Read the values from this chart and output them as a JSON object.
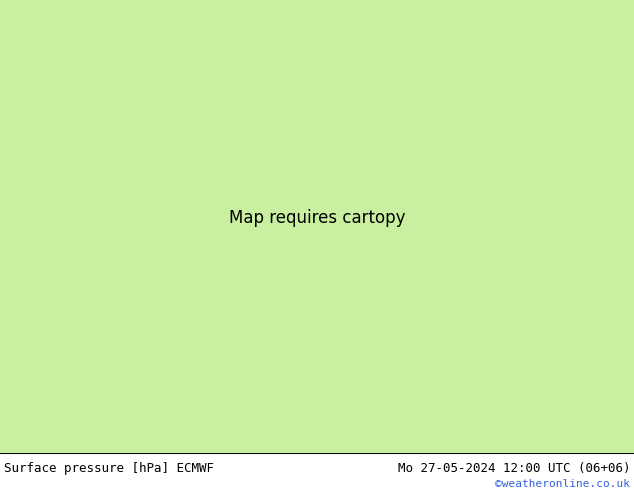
{
  "title_left": "Surface pressure [hPa] ECMWF",
  "title_right": "Mo 27-05-2024 12:00 UTC (06+06)",
  "credit": "©weatheronline.co.uk",
  "land_green": "#c8f0a0",
  "sea_gray": "#c8ccd8",
  "border_dark": "#404040",
  "border_gray": "#808080",
  "red": "#ff0000",
  "blue": "#0000ff",
  "black": "#000000",
  "footer_bg": "#d8f0c8",
  "credit_color": "#3060e0",
  "footer_fontsize": 9,
  "credit_fontsize": 8,
  "lon_min": 2.0,
  "lon_max": 20.0,
  "lat_min": 44.0,
  "lat_max": 57.5,
  "dpi": 100
}
